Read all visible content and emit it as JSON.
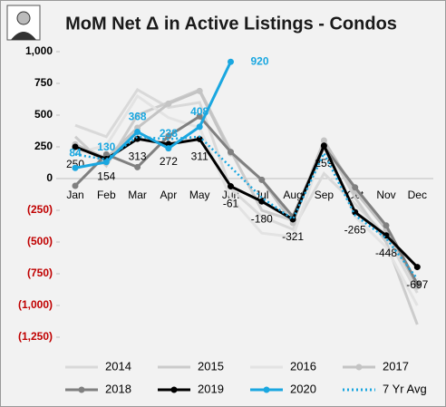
{
  "chart_data": {
    "type": "line",
    "title": "MoM Net Δ in Active Listings - Condos",
    "categories": [
      "Jan",
      "Feb",
      "Mar",
      "Apr",
      "May",
      "Jun",
      "Jul",
      "Aug",
      "Sep",
      "Oct",
      "Nov",
      "Dec"
    ],
    "ylim": [
      -1250,
      1000
    ],
    "yticks": [
      {
        "value": 1000,
        "label": "1,000"
      },
      750,
      500,
      250,
      0,
      {
        "value": -250,
        "label": "(250)"
      },
      {
        "value": -500,
        "label": "(500)"
      },
      {
        "value": -750,
        "label": "(750)"
      },
      {
        "value": -1000,
        "label": "(1,000)"
      },
      {
        "value": -1250,
        "label": "(1,250)"
      }
    ],
    "negative_tick_color": "#c00000",
    "grid": false,
    "series": [
      {
        "name": "2014",
        "color": "#d9d9d9",
        "values": [
          420,
          330,
          700,
          560,
          600,
          -80,
          -300,
          -400,
          40,
          -200,
          -450,
          -900
        ]
      },
      {
        "name": "2015",
        "color": "#cccccc",
        "values": [
          330,
          100,
          500,
          600,
          700,
          220,
          -250,
          -330,
          300,
          -150,
          -500,
          -1150
        ]
      },
      {
        "name": "2016",
        "color": "#e3e3e3",
        "values": [
          200,
          260,
          650,
          480,
          400,
          -150,
          -430,
          -460,
          250,
          -300,
          -540,
          -1000
        ]
      },
      {
        "name": "2017",
        "color": "#c4c4c4",
        "marker": true,
        "values": [
          270,
          160,
          400,
          590,
          690,
          200,
          -10,
          -350,
          300,
          -100,
          -400,
          -850
        ]
      },
      {
        "name": "2018",
        "color": "#808080",
        "marker": true,
        "values": [
          -57,
          190,
          90,
          335,
          490,
          210,
          -10,
          -300,
          250,
          -70,
          -370,
          -830
        ]
      },
      {
        "name": "2019",
        "color": "#000000",
        "marker": true,
        "data_labels": "below",
        "values": [
          250,
          154,
          313,
          272,
          311,
          -61,
          -180,
          -321,
          259,
          -265,
          -448,
          -697
        ]
      },
      {
        "name": "2020",
        "color": "#1aa7e0",
        "marker": true,
        "data_labels": "above",
        "values": [
          84,
          130,
          368,
          238,
          408,
          920,
          null,
          null,
          null,
          null,
          null,
          null
        ]
      },
      {
        "name": "7 Yr Avg",
        "color": "#1aa7e0",
        "dashed": true,
        "values": [
          190,
          150,
          330,
          310,
          330,
          90,
          -150,
          -320,
          200,
          -290,
          -470,
          -790
        ]
      }
    ]
  }
}
